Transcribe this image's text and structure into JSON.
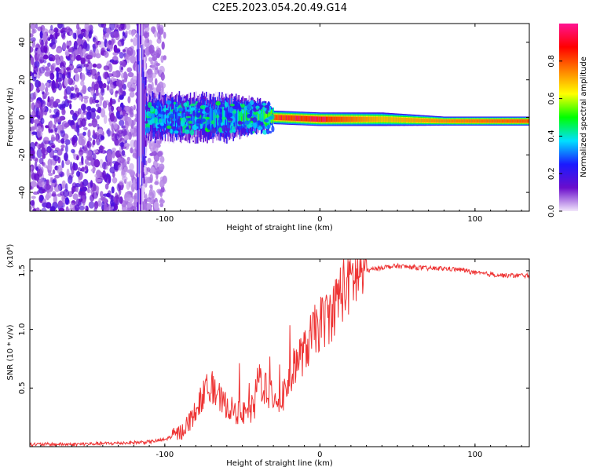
{
  "title": "C2E5.2023.054.20.49.G14",
  "chart_data": [
    {
      "type": "heatmap",
      "ylabel": "Frequency (Hz)",
      "xlabel": "Height of straight line (km)",
      "xlim": [
        -187,
        135
      ],
      "ylim": [
        -50,
        50
      ],
      "x_ticks": [
        -100,
        0,
        100
      ],
      "y_ticks": [
        -40,
        -20,
        0,
        20,
        40
      ],
      "colorbar": {
        "label": "Normalized spectral amplitude",
        "range": [
          0,
          1
        ],
        "ticks": [
          "0.0",
          "0.2",
          "0.4",
          "0.6",
          "0.8"
        ],
        "colors": [
          "#f2e6fb",
          "#6a0dcc",
          "#1a1aff",
          "#00e0ff",
          "#00ff00",
          "#ffff00",
          "#ff8000",
          "#ff0000",
          "#ff1493"
        ]
      },
      "band": [
        {
          "x": -187,
          "center": 0,
          "halfwidth": 50,
          "amplitude": 0.12
        },
        {
          "x": -115,
          "center": 0,
          "halfwidth": 50,
          "amplitude": 0.12
        },
        {
          "x": -112,
          "center": 0,
          "halfwidth": 10,
          "amplitude": 0.25
        },
        {
          "x": -60,
          "center": 0,
          "halfwidth": 10,
          "amplitude": 0.3
        },
        {
          "x": -35,
          "center": 1,
          "halfwidth": 6,
          "amplitude": 0.5
        },
        {
          "x": -30,
          "center": 0,
          "halfwidth": 3,
          "amplitude": 0.8
        },
        {
          "x": 0,
          "center": -1,
          "halfwidth": 3,
          "amplitude": 0.85
        },
        {
          "x": 40,
          "center": -1,
          "halfwidth": 3,
          "amplitude": 0.7
        },
        {
          "x": 80,
          "center": -2,
          "halfwidth": 2,
          "amplitude": 0.75
        },
        {
          "x": 135,
          "center": -2,
          "halfwidth": 2,
          "amplitude": 0.8
        }
      ]
    },
    {
      "type": "line",
      "ylabel": "SNR (10 * v/v)",
      "y_multiplier": "(x10⁴)",
      "xlabel": "Height of straight line (km)",
      "xlim": [
        -187,
        135
      ],
      "ylim": [
        0,
        1.6
      ],
      "x_ticks": [
        -100,
        0,
        100
      ],
      "y_ticks": [
        "0.5",
        "1.0",
        "1.5"
      ],
      "color": "#ee3333",
      "series": [
        {
          "x": [
            -187,
            -160,
            -130,
            -110,
            -100,
            -90,
            -85,
            -80,
            -75,
            -72,
            -70,
            -68,
            -65,
            -60,
            -55,
            -50,
            -45,
            -42,
            -40,
            -35,
            -30,
            -25,
            -22,
            -20,
            -15,
            -10,
            -5,
            0,
            5,
            10,
            12,
            15,
            20,
            25,
            30,
            40,
            50,
            60,
            70,
            80,
            90,
            95,
            100,
            110,
            120,
            135
          ],
          "y": [
            0.02,
            0.02,
            0.03,
            0.04,
            0.06,
            0.12,
            0.2,
            0.3,
            0.45,
            0.5,
            0.55,
            0.45,
            0.4,
            0.35,
            0.3,
            0.28,
            0.3,
            0.35,
            0.6,
            0.5,
            0.45,
            0.4,
            0.5,
            0.55,
            0.75,
            0.8,
            0.95,
            1.05,
            1.1,
            1.2,
            1.3,
            1.35,
            1.42,
            1.48,
            1.5,
            1.53,
            1.54,
            1.53,
            1.52,
            1.52,
            1.51,
            1.5,
            1.48,
            1.47,
            1.46,
            1.46
          ]
        }
      ]
    }
  ]
}
